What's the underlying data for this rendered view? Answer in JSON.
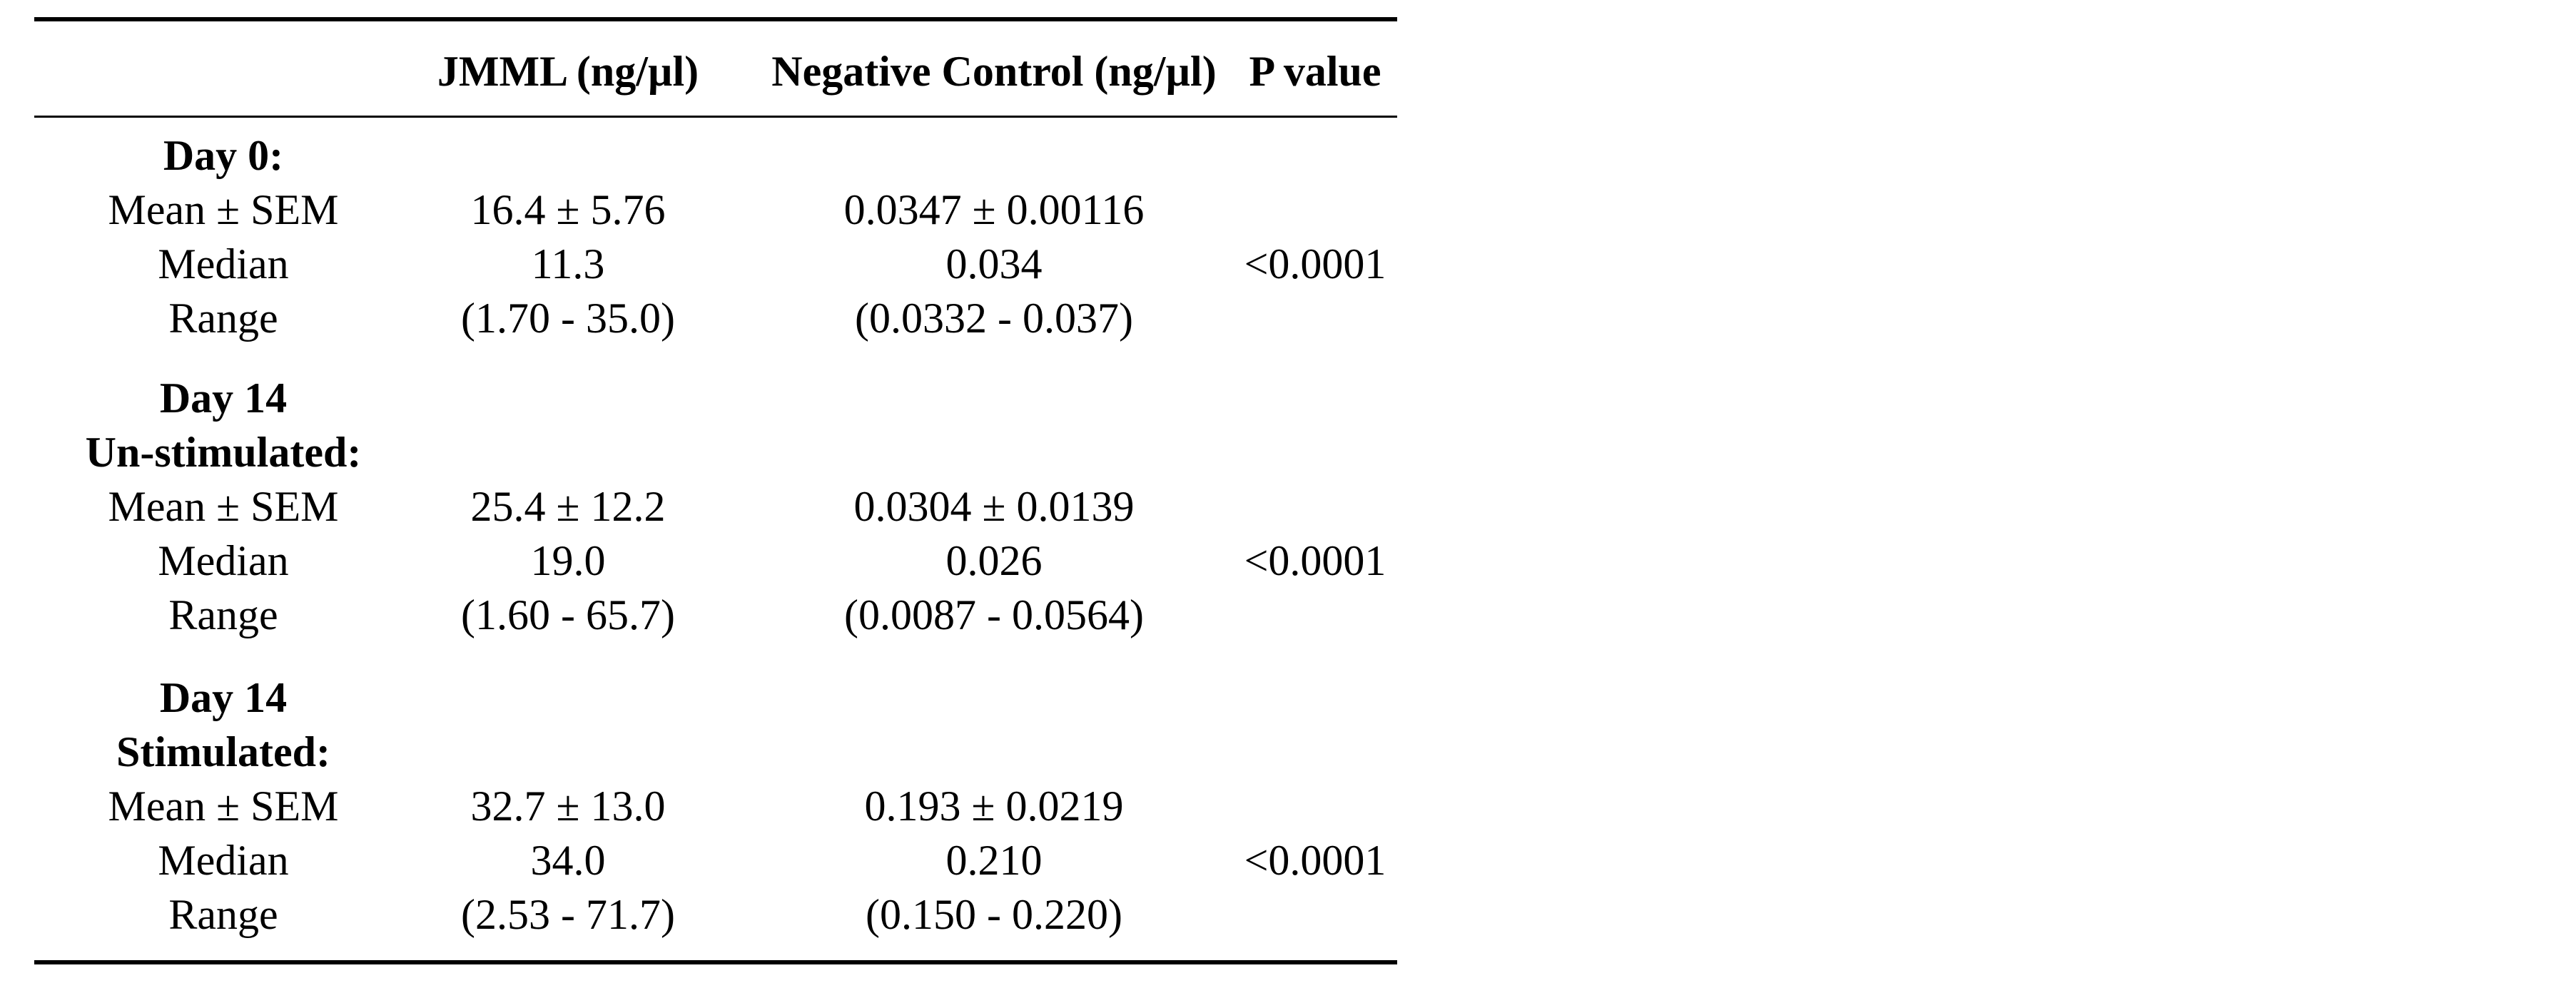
{
  "table": {
    "headers": [
      "",
      "JMML (ng/µl)",
      "Negative Control (ng/µl)",
      "P value"
    ],
    "groups": [
      {
        "title_lines": [
          "Day 0:"
        ],
        "rows": [
          {
            "label": "Mean ± SEM",
            "jmml": "16.4 ± 5.76",
            "control": "0.0347 ± 0.00116"
          },
          {
            "label": "Median",
            "jmml": "11.3",
            "control": "0.034"
          },
          {
            "label": "Range",
            "jmml": "(1.70 - 35.0)",
            "control": "(0.0332 - 0.037)"
          }
        ],
        "p_value": "<0.0001"
      },
      {
        "title_lines": [
          "Day 14",
          "Un-stimulated:"
        ],
        "rows": [
          {
            "label": "Mean ± SEM",
            "jmml": "25.4 ± 12.2",
            "control": "0.0304 ± 0.0139"
          },
          {
            "label": "Median",
            "jmml": "19.0",
            "control": "0.026"
          },
          {
            "label": "Range",
            "jmml": "(1.60 - 65.7)",
            "control": "(0.0087 - 0.0564)"
          }
        ],
        "p_value": "<0.0001"
      },
      {
        "title_lines": [
          "Day 14",
          "Stimulated:"
        ],
        "rows": [
          {
            "label": "Mean ± SEM",
            "jmml": "32.7 ± 13.0",
            "control": "0.193 ± 0.0219"
          },
          {
            "label": "Median",
            "jmml": "34.0",
            "control": "0.210"
          },
          {
            "label": "Range",
            "jmml": "(2.53 - 71.7)",
            "control": "(0.150 - 0.220)"
          }
        ],
        "p_value": "<0.0001"
      }
    ]
  }
}
